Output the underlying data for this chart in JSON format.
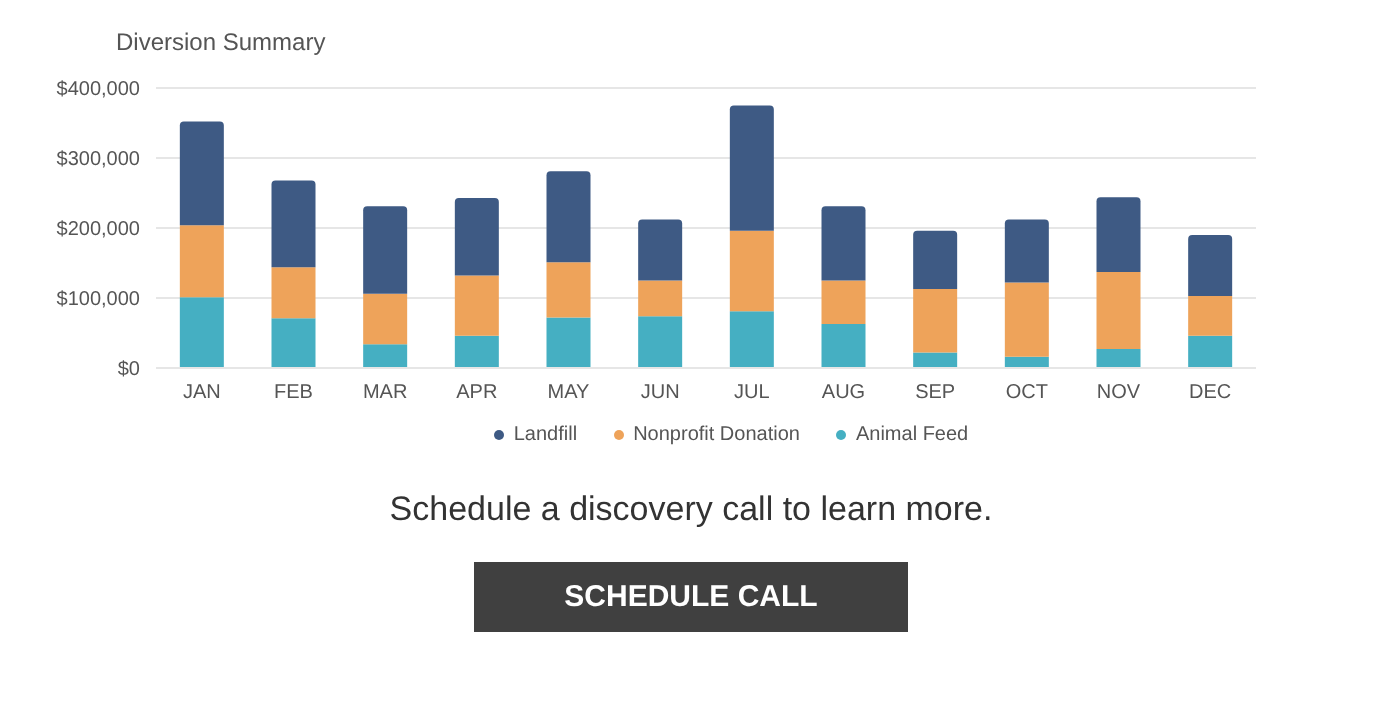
{
  "chart_data": {
    "type": "bar",
    "title": "Diversion Summary",
    "categories": [
      "JAN",
      "FEB",
      "MAR",
      "APR",
      "MAY",
      "JUN",
      "JUL",
      "AUG",
      "SEP",
      "OCT",
      "NOV",
      "DEC"
    ],
    "series": [
      {
        "name": "Animal Feed",
        "color": "#45afc2",
        "values": [
          101000,
          71000,
          34000,
          46000,
          72000,
          74000,
          81000,
          63000,
          22000,
          16000,
          27000,
          46000
        ]
      },
      {
        "name": "Nonprofit Donation",
        "color": "#eea35a",
        "values": [
          103000,
          73000,
          72000,
          86000,
          79000,
          51000,
          115000,
          62000,
          91000,
          106000,
          110000,
          57000
        ]
      },
      {
        "name": "Landfill",
        "color": "#3e5a84",
        "values": [
          148000,
          124000,
          125000,
          111000,
          130000,
          87000,
          179000,
          106000,
          83000,
          90000,
          107000,
          87000
        ]
      }
    ],
    "stacked": true,
    "ylim": [
      0,
      400000
    ],
    "yticks": [
      {
        "value": 0,
        "label": "$0"
      },
      {
        "value": 100000,
        "label": "$100,000"
      },
      {
        "value": 200000,
        "label": "$200,000"
      },
      {
        "value": 300000,
        "label": "$300,000"
      },
      {
        "value": 400000,
        "label": "$400,000"
      }
    ],
    "grid": "y",
    "legend": "bottom",
    "annotations": [
      "Schedule a discovery call to learn more.",
      "SCHEDULE CALL"
    ]
  }
}
